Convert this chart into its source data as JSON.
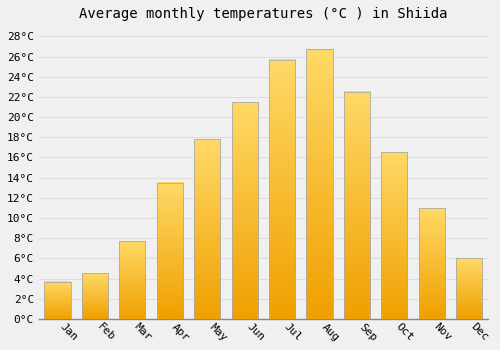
{
  "title": "Average monthly temperatures (°C ) in Shiida",
  "months": [
    "Jan",
    "Feb",
    "Mar",
    "Apr",
    "May",
    "Jun",
    "Jul",
    "Aug",
    "Sep",
    "Oct",
    "Nov",
    "Dec"
  ],
  "temperatures": [
    3.7,
    4.5,
    7.7,
    13.5,
    17.8,
    21.5,
    25.7,
    26.7,
    22.5,
    16.5,
    11.0,
    6.0
  ],
  "bar_color_bottom": "#F0A000",
  "bar_color_top": "#FFD966",
  "bar_edge_color": "#AAAAAA",
  "ylim": [
    0,
    29
  ],
  "ytick_step": 2,
  "background_color": "#f0f0f0",
  "grid_color": "#dddddd",
  "font_family": "monospace",
  "title_fontsize": 10,
  "tick_fontsize": 8,
  "bar_width": 0.7
}
